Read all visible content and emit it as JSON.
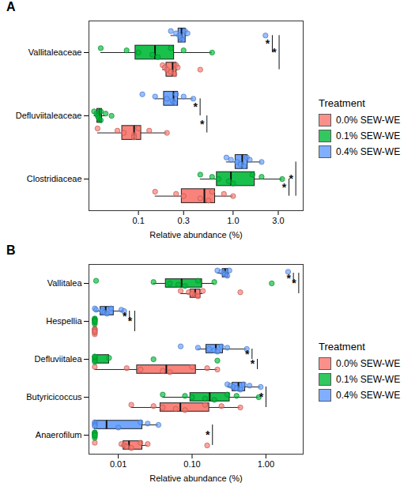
{
  "chart_data": [
    {
      "type": "boxplot",
      "title": "A",
      "orientation": "horizontal",
      "log": "x",
      "x_label": "Relative abundance (%)",
      "xlim": [
        0.03,
        5.5
      ],
      "xticks": [
        0.1,
        0.3,
        {
          "value": 1,
          "label": "1.0"
        },
        {
          "value": 3,
          "label": "3.0"
        }
      ],
      "legend": "right",
      "legend_title": "Treatment",
      "categories": [
        "Vallitaleaceae",
        "Defluviitaleaceae",
        "Clostridiaceae"
      ],
      "series": [
        {
          "name": "0.0% SEW-WE",
          "color": "#F8766D",
          "values": [
            [
              0.18,
              0.19,
              0.2,
              0.22,
              0.24,
              0.25,
              0.26,
              0.45
            ],
            [
              0.037,
              0.06,
              0.07,
              0.09,
              0.09,
              0.1,
              0.13,
              0.2
            ],
            [
              0.15,
              0.25,
              0.3,
              0.45,
              0.55,
              0.6,
              0.8,
              1.0
            ]
          ]
        },
        {
          "name": "0.1% SEW-WE",
          "color": "#00BA38",
          "values": [
            [
              0.04,
              0.075,
              0.1,
              0.14,
              0.16,
              0.22,
              0.3,
              0.6
            ],
            [
              0.034,
              0.036,
              0.037,
              0.038,
              0.04,
              0.04,
              0.045,
              0.052
            ],
            [
              0.45,
              0.6,
              0.7,
              0.9,
              1.0,
              1.6,
              2.0,
              3.3
            ]
          ]
        },
        {
          "name": "0.4% SEW-WE",
          "color": "#619CFF",
          "values": [
            [
              0.22,
              0.25,
              0.27,
              0.28,
              0.29,
              0.31,
              0.33,
              2.2
            ],
            [
              0.11,
              0.15,
              0.2,
              0.23,
              0.24,
              0.25,
              0.3,
              0.38
            ],
            [
              0.85,
              0.95,
              1.1,
              1.2,
              1.3,
              1.4,
              1.5,
              2.0
            ]
          ]
        }
      ],
      "annotations": [
        {
          "category": "Vallitaleaceae",
          "groups": [
            "0.4% SEW-WE",
            "0.1% SEW-WE"
          ],
          "label": "*"
        },
        {
          "category": "Vallitaleaceae",
          "groups": [
            "0.4% SEW-WE",
            "0.0% SEW-WE"
          ],
          "label": "*"
        },
        {
          "category": "Defluviitaleaceae",
          "groups": [
            "0.4% SEW-WE",
            "0.1% SEW-WE"
          ],
          "label": "*"
        },
        {
          "category": "Defluviitaleaceae",
          "groups": [
            "0.1% SEW-WE",
            "0.0% SEW-WE"
          ],
          "label": "*"
        },
        {
          "category": "Clostridiaceae",
          "groups": [
            "0.1% SEW-WE",
            "0.0% SEW-WE"
          ],
          "label": "*"
        },
        {
          "category": "Clostridiaceae",
          "groups": [
            "0.4% SEW-WE",
            "0.0% SEW-WE"
          ],
          "label": "*"
        }
      ]
    },
    {
      "type": "boxplot",
      "title": "B",
      "orientation": "horizontal",
      "log": "x",
      "x_label": "Relative abundance (%)",
      "xlim": [
        0.004,
        3.2
      ],
      "xticks": [
        0.01,
        {
          "value": 0.1,
          "label": "0.10"
        },
        {
          "value": 1,
          "label": "1.00"
        }
      ],
      "legend": "right",
      "legend_title": "Treatment",
      "categories": [
        "Vallitalea",
        "Hespellia",
        "Defluviitalea",
        "Butyricicoccus",
        "Anaerofilum"
      ],
      "series": [
        {
          "name": "0.0% SEW-WE",
          "color": "#F8766D",
          "values": [
            [
              0.07,
              0.09,
              0.1,
              0.11,
              0.12,
              0.14,
              0.45
            ],
            [
              0.0048,
              0.0048,
              0.0048,
              0.0048,
              0.0048,
              0.0048,
              0.0048,
              0.0048
            ],
            [
              0.0048,
              0.013,
              0.02,
              0.04,
              0.05,
              0.1,
              0.16,
              0.22
            ],
            [
              0.015,
              0.03,
              0.04,
              0.06,
              0.08,
              0.15,
              0.25,
              0.45
            ],
            [
              0.0048,
              0.011,
              0.012,
              0.013,
              0.015,
              0.02,
              0.025,
              0.16
            ]
          ]
        },
        {
          "name": "0.1% SEW-WE",
          "color": "#00BA38",
          "values": [
            [
              0.005,
              0.03,
              0.05,
              0.065,
              0.08,
              0.12,
              0.2,
              1.2
            ],
            [
              0.0048,
              0.0048,
              0.0048,
              0.0048,
              0.0048,
              0.0048,
              0.0048,
              0.0048
            ],
            [
              0.0048,
              0.0048,
              0.0048,
              0.0048,
              0.0048,
              0.0048,
              0.0075,
              0.03,
              0.22
            ],
            [
              0.04,
              0.08,
              0.1,
              0.15,
              0.2,
              0.3,
              0.4,
              0.8
            ],
            [
              0.0048,
              0.0048,
              0.0048,
              0.0048,
              0.0048,
              0.0048,
              0.0048,
              0.0048
            ]
          ]
        },
        {
          "name": "0.4% SEW-WE",
          "color": "#619CFF",
          "values": [
            [
              0.22,
              0.25,
              0.27,
              0.28,
              0.3,
              0.32,
              2.0
            ],
            [
              0.0048,
              0.005,
              0.006,
              0.0065,
              0.007,
              0.008,
              0.011,
              0.012
            ],
            [
              0.07,
              0.12,
              0.17,
              0.2,
              0.22,
              0.25,
              0.3,
              0.55
            ],
            [
              0.3,
              0.33,
              0.36,
              0.4,
              0.45,
              0.5,
              0.6,
              0.85
            ],
            [
              0.0048,
              0.0048,
              0.0048,
              0.0048,
              0.01,
              0.02,
              0.025,
              0.035
            ]
          ]
        }
      ],
      "annotations": [
        {
          "category": "Vallitalea",
          "groups": [
            "0.4% SEW-WE",
            "0.1% SEW-WE"
          ],
          "label": "*"
        },
        {
          "category": "Vallitalea",
          "groups": [
            "0.4% SEW-WE",
            "0.0% SEW-WE"
          ],
          "label": "*"
        },
        {
          "category": "Hespellia",
          "groups": [
            "0.4% SEW-WE",
            "0.1% SEW-WE"
          ],
          "label": "*"
        },
        {
          "category": "Hespellia",
          "groups": [
            "0.4% SEW-WE",
            "0.0% SEW-WE"
          ],
          "label": "*"
        },
        {
          "category": "Defluviitalea",
          "groups": [
            "0.4% SEW-WE",
            "0.1% SEW-WE"
          ],
          "label": "*"
        },
        {
          "category": "Defluviitalea",
          "groups": [
            "0.1% SEW-WE",
            "0.0% SEW-WE"
          ],
          "label": "*"
        },
        {
          "category": "Butyricicoccus",
          "groups": [
            "0.4% SEW-WE",
            "0.0% SEW-WE"
          ],
          "label": "*"
        },
        {
          "category": "Anaerofilum",
          "groups": [
            "0.4% SEW-WE",
            "0.0% SEW-WE"
          ],
          "label": "*"
        }
      ]
    }
  ]
}
